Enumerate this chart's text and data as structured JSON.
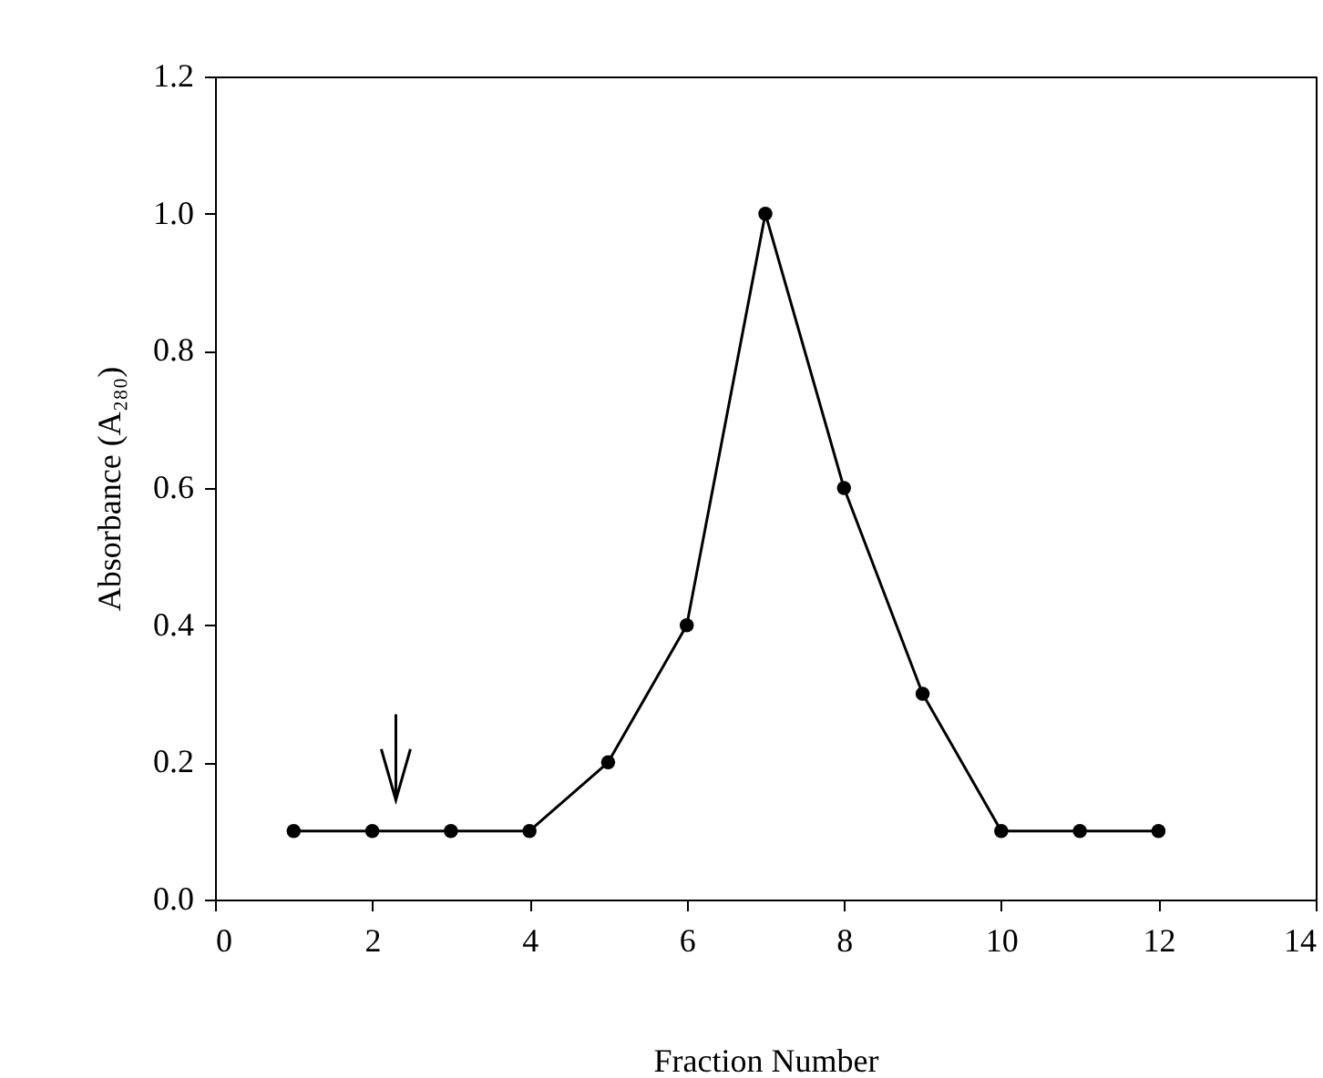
{
  "chart_data": {
    "type": "line",
    "xlabel": "Fraction Number",
    "ylabel": "Absorbance (A₂₈₀)",
    "x": [
      1,
      2,
      3,
      4,
      5,
      6,
      7,
      8,
      9,
      10,
      11,
      12
    ],
    "series": [
      {
        "color": "#000000",
        "values": [
          0.1,
          0.1,
          0.1,
          0.1,
          0.2,
          0.4,
          1.0,
          0.6,
          0.3,
          0.1,
          0.1,
          0.1
        ]
      }
    ],
    "xlim": [
      0,
      14
    ],
    "xticks": [
      0,
      2,
      4,
      6,
      8,
      10,
      12,
      14
    ],
    "ylim": [
      0,
      1.2
    ],
    "yticks": [
      {
        "value": 0,
        "label": "0.0"
      },
      {
        "value": 0.2,
        "label": "0.2"
      },
      {
        "value": 0.4,
        "label": "0.4"
      },
      {
        "value": 0.6,
        "label": "0.6"
      },
      {
        "value": 0.8,
        "label": "0.8"
      },
      {
        "value": 1.0,
        "label": "1.0"
      },
      {
        "value": 1.2,
        "label": "1.2"
      }
    ],
    "grid": false,
    "legend": false,
    "marker": "circle",
    "line_style": "solid"
  }
}
